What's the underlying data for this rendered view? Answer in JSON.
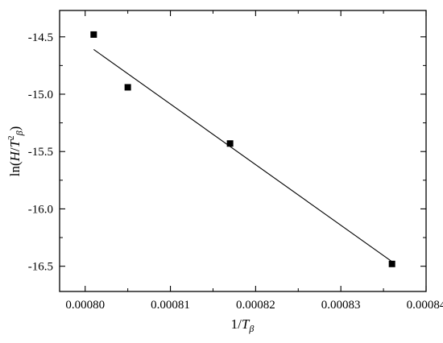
{
  "chart_data": {
    "type": "scatter",
    "title": "",
    "xlabel": {
      "prefix": "1/",
      "var": "T",
      "sub": "β"
    },
    "ylabel": {
      "prefix": "ln(",
      "var1": "H",
      "slash": "/",
      "var2": "T",
      "sup": "2",
      "sub": "β",
      "suffix": ")"
    },
    "xlim": [
      0.000797,
      0.00084
    ],
    "ylim": [
      -16.72,
      -14.27
    ],
    "x_ticks": [
      0.0008,
      0.00081,
      0.00082,
      0.00083,
      0.00084
    ],
    "x_tick_labels": [
      "0.00080",
      "0.00081",
      "0.00082",
      "0.00083",
      "0.00084"
    ],
    "y_ticks": [
      -14.5,
      -15.0,
      -15.5,
      -16.0,
      -16.5
    ],
    "y_tick_labels": [
      "-14.5",
      "-15.0",
      "-15.5",
      "-16.0",
      "-16.5"
    ],
    "grid": false,
    "legend": "none",
    "series": [
      {
        "kind": "scatter",
        "marker": "square",
        "points": [
          {
            "x": 0.000801,
            "y": -14.48
          },
          {
            "x": 0.000805,
            "y": -14.94
          },
          {
            "x": 0.000817,
            "y": -15.43
          },
          {
            "x": 0.000836,
            "y": -16.48
          }
        ]
      },
      {
        "kind": "fit-line",
        "points": [
          {
            "x": 0.000801,
            "y": -14.61
          },
          {
            "x": 0.000836,
            "y": -16.46
          }
        ]
      }
    ],
    "colors": {
      "marker": "#000000",
      "line": "#000000",
      "axes": "#000000"
    }
  }
}
